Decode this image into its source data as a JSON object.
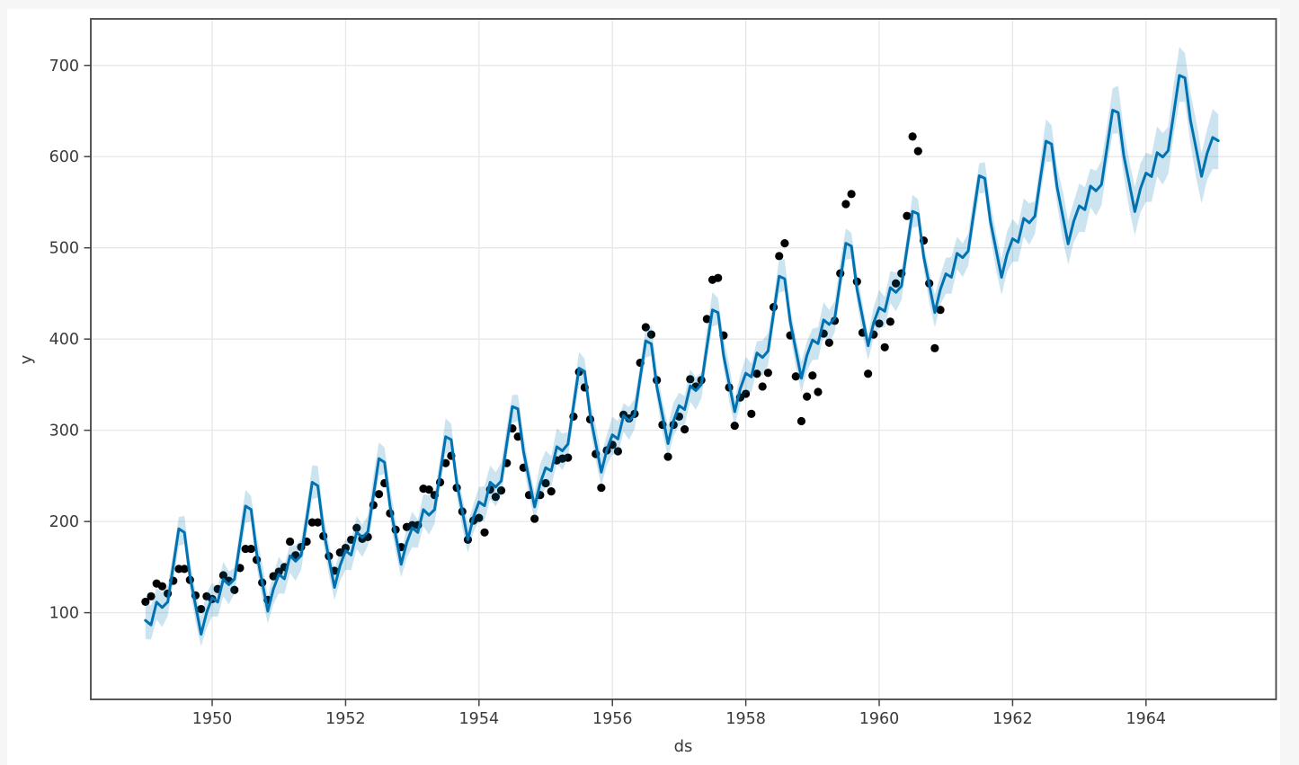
{
  "page": {
    "background_color": "#f6f6f7",
    "figure_background_color": "#ffffff",
    "title": ""
  },
  "chart_data": {
    "type": "line",
    "description": "Prophet-style time series forecast: black observed monthly points, blue forecast line with light-blue uncertainty interval",
    "title": "",
    "xlabel": "ds",
    "ylabel": "y",
    "xlim": [
      1948.18,
      1965.95
    ],
    "ylim": [
      5,
      751
    ],
    "xticks": [
      1950,
      1952,
      1954,
      1956,
      1958,
      1960,
      1962,
      1964
    ],
    "yticks": [
      100,
      200,
      300,
      400,
      500,
      600,
      700
    ],
    "grid": true,
    "legend": "none",
    "colors": {
      "observed_points": "#000000",
      "forecast_line": "#0072B2",
      "uncertainty_band": "rgba(0,114,178,0.2)",
      "gridline": "#e7e7e7",
      "spine": "#454545",
      "tick_label": "#3a3a3a"
    },
    "series": [
      {
        "name": "observed",
        "type": "scatter",
        "start_year": 1949,
        "start_month": 1,
        "frequency": "monthly",
        "end": "1960-12",
        "values": [
          112,
          118,
          132,
          129,
          121,
          135,
          148,
          148,
          136,
          119,
          104,
          118,
          115,
          126,
          141,
          135,
          125,
          149,
          170,
          170,
          158,
          133,
          114,
          140,
          145,
          150,
          178,
          163,
          172,
          178,
          199,
          199,
          184,
          162,
          146,
          166,
          171,
          180,
          193,
          181,
          183,
          218,
          230,
          242,
          209,
          191,
          172,
          194,
          196,
          196,
          236,
          235,
          229,
          243,
          264,
          272,
          237,
          211,
          180,
          201,
          204,
          188,
          235,
          227,
          234,
          264,
          302,
          293,
          259,
          229,
          203,
          229,
          242,
          233,
          267,
          269,
          270,
          315,
          364,
          347,
          312,
          274,
          237,
          278,
          284,
          277,
          317,
          313,
          318,
          374,
          413,
          405,
          355,
          306,
          271,
          306,
          315,
          301,
          356,
          348,
          355,
          422,
          465,
          467,
          404,
          347,
          305,
          336,
          340,
          318,
          362,
          348,
          363,
          435,
          491,
          505,
          404,
          359,
          310,
          337,
          360,
          342,
          406,
          396,
          420,
          472,
          548,
          559,
          463,
          407,
          362,
          405,
          417,
          391,
          419,
          461,
          472,
          535,
          622,
          606,
          508,
          461,
          390,
          432
        ]
      },
      {
        "name": "yhat_forecast",
        "type": "line",
        "start_year": 1949,
        "start_month": 1,
        "frequency": "monthly",
        "end": "1965-02",
        "n_points": 194,
        "model": {
          "trend_knots": [
            [
              1949.5,
              130
            ],
            [
              1950.5,
              155
            ],
            [
              1951.5,
              181
            ],
            [
              1952.5,
              207
            ],
            [
              1953.5,
              231
            ],
            [
              1954.5,
              264
            ],
            [
              1955.5,
              306
            ],
            [
              1956.5,
              336
            ],
            [
              1957.5,
              370
            ],
            [
              1958.5,
              407
            ],
            [
              1959.5,
              443
            ],
            [
              1960.5,
              478
            ],
            [
              1961.5,
              517
            ],
            [
              1962.5,
              555
            ],
            [
              1963.5,
              589
            ],
            [
              1964.5,
              627
            ],
            [
              1965.5,
              667
            ]
          ],
          "seasonal_monthly_offsets": [
            -26,
            -33,
            -10,
            -18,
            -14,
            24,
            62,
            56,
            6,
            -28,
            -62,
            -40
          ],
          "july_peaks_by_year": [
            192,
            217,
            243,
            269,
            293,
            326,
            368,
            398,
            432,
            469,
            505,
            540,
            579,
            617,
            651,
            689
          ]
        }
      },
      {
        "name": "uncertainty_interval",
        "type": "band",
        "half_width_in_sample": 17,
        "half_width_growth_per_year_after_forecast_start": 3.2,
        "forecast_start_year": 1961.0
      }
    ]
  }
}
